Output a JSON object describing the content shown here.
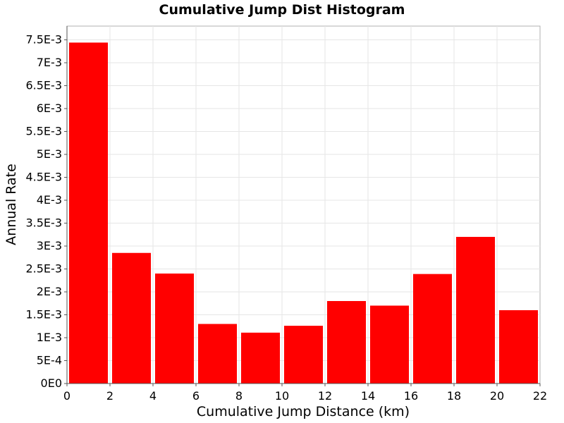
{
  "chart_data": {
    "type": "bar",
    "title": "Cumulative Jump Dist Histogram",
    "xlabel": "Cumulative Jump Distance (km)",
    "ylabel": "Annual Rate",
    "xlim": [
      0,
      22
    ],
    "ylim": [
      0,
      0.0078
    ],
    "grid": true,
    "color": "#ff0000",
    "bins": [
      {
        "x0": 0,
        "x1": 2,
        "value": 0.00744
      },
      {
        "x0": 2,
        "x1": 4,
        "value": 0.00285
      },
      {
        "x0": 4,
        "x1": 6,
        "value": 0.0024
      },
      {
        "x0": 6,
        "x1": 8,
        "value": 0.0013
      },
      {
        "x0": 8,
        "x1": 10,
        "value": 0.00111
      },
      {
        "x0": 10,
        "x1": 12,
        "value": 0.00126
      },
      {
        "x0": 12,
        "x1": 14,
        "value": 0.0018
      },
      {
        "x0": 14,
        "x1": 16,
        "value": 0.0017
      },
      {
        "x0": 16,
        "x1": 18,
        "value": 0.00239
      },
      {
        "x0": 18,
        "x1": 20,
        "value": 0.0032
      },
      {
        "x0": 20,
        "x1": 22,
        "value": 0.0016
      }
    ],
    "x_ticks": [
      {
        "value": 0,
        "label": "0"
      },
      {
        "value": 2,
        "label": "2"
      },
      {
        "value": 4,
        "label": "4"
      },
      {
        "value": 6,
        "label": "6"
      },
      {
        "value": 8,
        "label": "8"
      },
      {
        "value": 10,
        "label": "10"
      },
      {
        "value": 12,
        "label": "12"
      },
      {
        "value": 14,
        "label": "14"
      },
      {
        "value": 16,
        "label": "16"
      },
      {
        "value": 18,
        "label": "18"
      },
      {
        "value": 20,
        "label": "20"
      },
      {
        "value": 22,
        "label": "22"
      }
    ],
    "y_ticks": [
      {
        "value": 0,
        "label": "0E0"
      },
      {
        "value": 0.0005,
        "label": "5E-4"
      },
      {
        "value": 0.001,
        "label": "1E-3"
      },
      {
        "value": 0.0015,
        "label": "1.5E-3"
      },
      {
        "value": 0.002,
        "label": "2E-3"
      },
      {
        "value": 0.0025,
        "label": "2.5E-3"
      },
      {
        "value": 0.003,
        "label": "3E-3"
      },
      {
        "value": 0.0035,
        "label": "3.5E-3"
      },
      {
        "value": 0.004,
        "label": "4E-3"
      },
      {
        "value": 0.0045,
        "label": "4.5E-3"
      },
      {
        "value": 0.005,
        "label": "5E-3"
      },
      {
        "value": 0.0055,
        "label": "5.5E-3"
      },
      {
        "value": 0.006,
        "label": "6E-3"
      },
      {
        "value": 0.0065,
        "label": "6.5E-3"
      },
      {
        "value": 0.007,
        "label": "7E-3"
      },
      {
        "value": 0.0075,
        "label": "7.5E-3"
      }
    ]
  }
}
